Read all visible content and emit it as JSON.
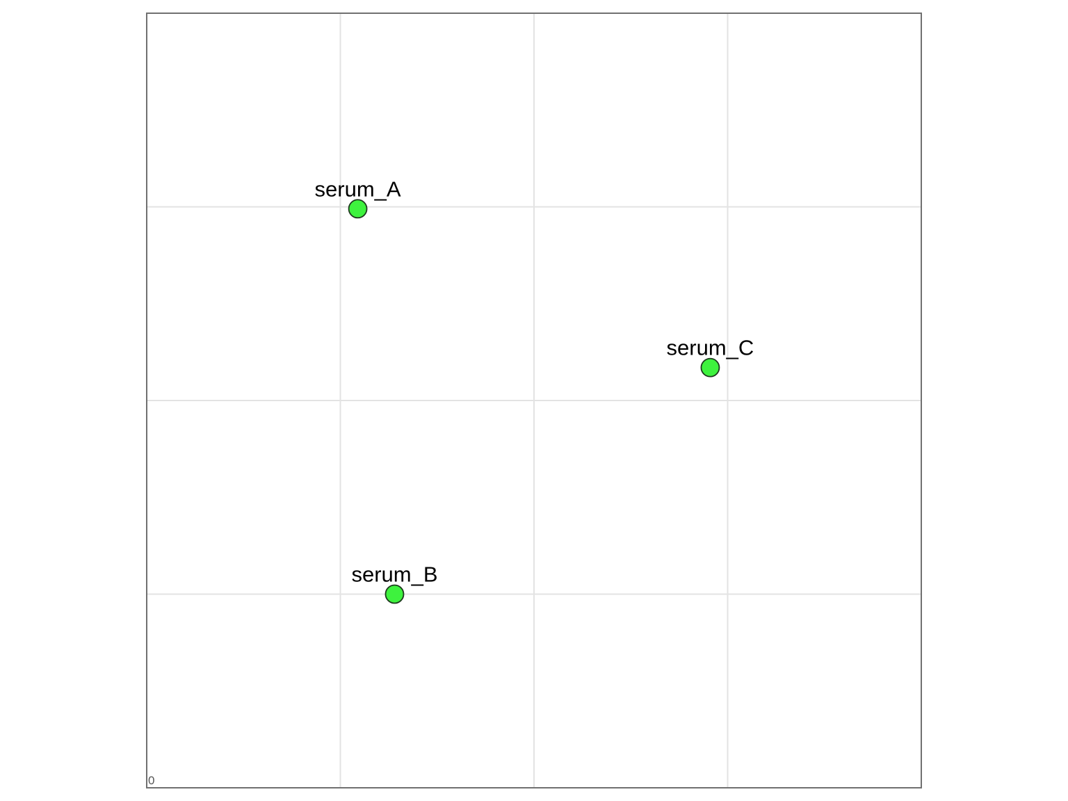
{
  "chart_data": {
    "type": "scatter",
    "title": "",
    "xlabel": "",
    "ylabel": "",
    "corner_label": "0",
    "xlim": [
      0,
      4
    ],
    "ylim": [
      0,
      4
    ],
    "grid": true,
    "point_color": "#3ef23e",
    "point_stroke": "#1e3a1e",
    "points": [
      {
        "label": "serum_A",
        "x": 1.09,
        "y": 2.99
      },
      {
        "label": "serum_B",
        "x": 1.28,
        "y": 1.0
      },
      {
        "label": "serum_C",
        "x": 2.91,
        "y": 2.17
      }
    ]
  }
}
